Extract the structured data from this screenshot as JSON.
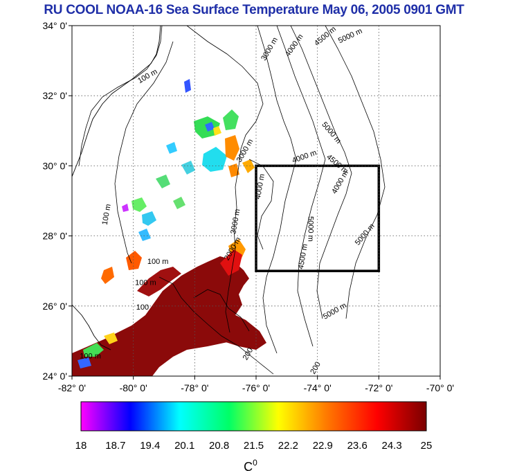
{
  "title": "RU COOL  NOAA-16 Sea Surface Temperature May 06, 2005 0901 GMT",
  "colors": {
    "title": "#1f2fa8",
    "land": "#ffffff",
    "box": "#000000",
    "grid": "#555555"
  },
  "map": {
    "lat_range": [
      24,
      34
    ],
    "lon_range": [
      -82,
      -70
    ],
    "lat_ticks": [
      "24° 0'",
      "26° 0'",
      "28° 0'",
      "30° 0'",
      "32° 0'",
      "34° 0'"
    ],
    "lon_ticks": [
      "-82° 0'",
      "-80° 0'",
      "-78° 0'",
      "-76° 0'",
      "-74° 0'",
      "-72° 0'",
      "-70° 0'"
    ],
    "study_box": {
      "lon_min": -76,
      "lon_max": -72,
      "lat_min": 27,
      "lat_max": 30
    },
    "contour_labels": [
      {
        "text": "3000 m",
        "lon": -75.5,
        "lat": 33.3,
        "rot": -60
      },
      {
        "text": "4000 m",
        "lon": -74.7,
        "lat": 33.4,
        "rot": -55
      },
      {
        "text": "4500 m",
        "lon": -73.7,
        "lat": 33.65,
        "rot": -40
      },
      {
        "text": "5000 m",
        "lon": -72.9,
        "lat": 33.65,
        "rot": -25
      },
      {
        "text": "100 m",
        "lon": -79.5,
        "lat": 32.5,
        "rot": -30
      },
      {
        "text": "3000 m",
        "lon": -76.3,
        "lat": 30.4,
        "rot": -60
      },
      {
        "text": "5000 m",
        "lon": -73.6,
        "lat": 30.9,
        "rot": 50
      },
      {
        "text": "4000 m",
        "lon": -74.4,
        "lat": 30.2,
        "rot": -20
      },
      {
        "text": "4500 m",
        "lon": -73.4,
        "lat": 30.0,
        "rot": 40
      },
      {
        "text": "4000 m",
        "lon": -73.2,
        "lat": 29.5,
        "rot": -60
      },
      {
        "text": "4000 m",
        "lon": -75.8,
        "lat": 29.4,
        "rot": -80
      },
      {
        "text": "5000 m",
        "lon": -74.3,
        "lat": 28.2,
        "rot": 90
      },
      {
        "text": "5000 m",
        "lon": -72.4,
        "lat": 28.0,
        "rot": -50
      },
      {
        "text": "3000 m",
        "lon": -76.6,
        "lat": 28.4,
        "rot": -80
      },
      {
        "text": "4500 m",
        "lon": -74.4,
        "lat": 27.4,
        "rot": -80
      },
      {
        "text": "2000 m",
        "lon": -76.7,
        "lat": 27.6,
        "rot": -60
      },
      {
        "text": "5000 m",
        "lon": -73.4,
        "lat": 25.8,
        "rot": -30
      },
      {
        "text": "100 m",
        "lon": -80.8,
        "lat": 28.6,
        "rot": -80
      },
      {
        "text": "100 m",
        "lon": -79.2,
        "lat": 27.2,
        "rot": 0
      },
      {
        "text": "100 m",
        "lon": -79.6,
        "lat": 26.6,
        "rot": 0
      },
      {
        "text": "100",
        "lon": -79.7,
        "lat": 25.9,
        "rot": 0
      },
      {
        "text": "100 m",
        "lon": -81.4,
        "lat": 24.5,
        "rot": 0
      },
      {
        "text": "200",
        "lon": -76.2,
        "lat": 24.6,
        "rot": -60
      },
      {
        "text": "200",
        "lon": -74.0,
        "lat": 24.2,
        "rot": -60
      }
    ]
  },
  "colorbar": {
    "min": 18,
    "max": 25,
    "ticks": [
      "18",
      "18.7",
      "19.4",
      "20.1",
      "20.8",
      "21.5",
      "22.2",
      "22.9",
      "23.6",
      "24.3",
      "25"
    ],
    "unit_label": "C",
    "unit_superscript": "0",
    "stops": [
      "#ff00ff",
      "#0000ff",
      "#00ffff",
      "#00ff66",
      "#ffff00",
      "#ff7700",
      "#ff0000",
      "#7a0000"
    ]
  }
}
